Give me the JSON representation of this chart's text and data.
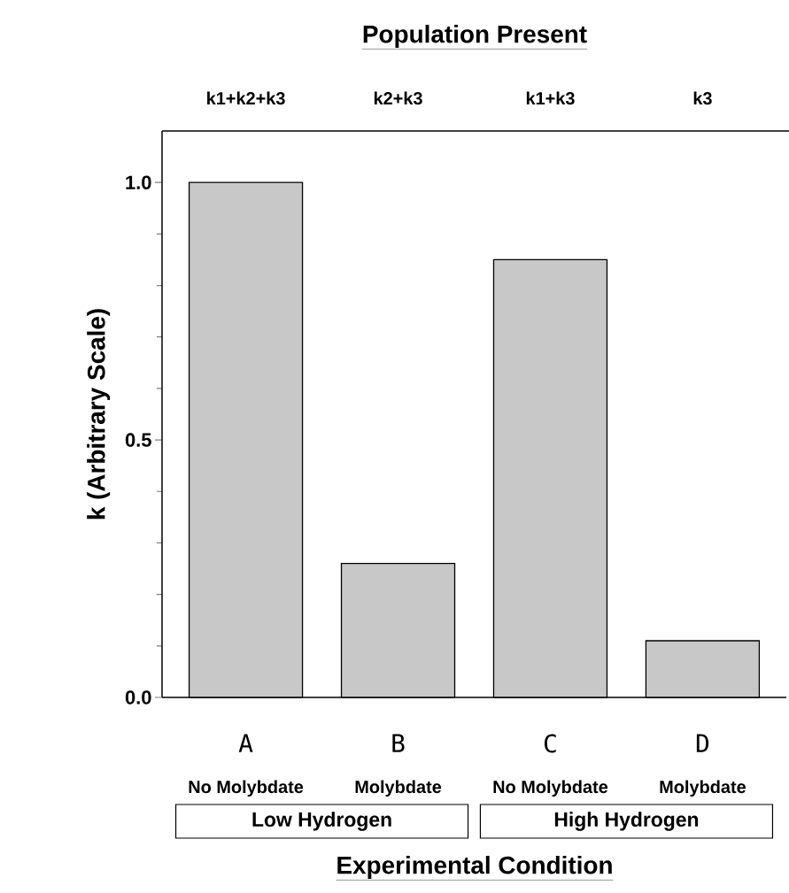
{
  "chart_data": {
    "type": "bar",
    "title": "Population Present",
    "xlabel": "Experimental Condition",
    "ylabel": "k (Arbitrary Scale)",
    "categories": [
      "A",
      "B",
      "C",
      "D"
    ],
    "values": [
      1.0,
      0.26,
      0.85,
      0.11
    ],
    "color": "#c8c8c8",
    "ylim": [
      0,
      1.1
    ],
    "yticks": [
      {
        "value": 0,
        "label": "0.0"
      },
      {
        "value": 0.5,
        "label": "0.5"
      },
      {
        "value": 1.0,
        "label": "1.0"
      }
    ],
    "annotations": [
      "k1+k2+k3",
      "k2+k3",
      "k1+k3",
      "k3",
      "No Molybdate",
      "Molybdate",
      "No Molybdate",
      "Molybdate",
      "Low Hydrogen",
      "High Hydrogen"
    ]
  }
}
